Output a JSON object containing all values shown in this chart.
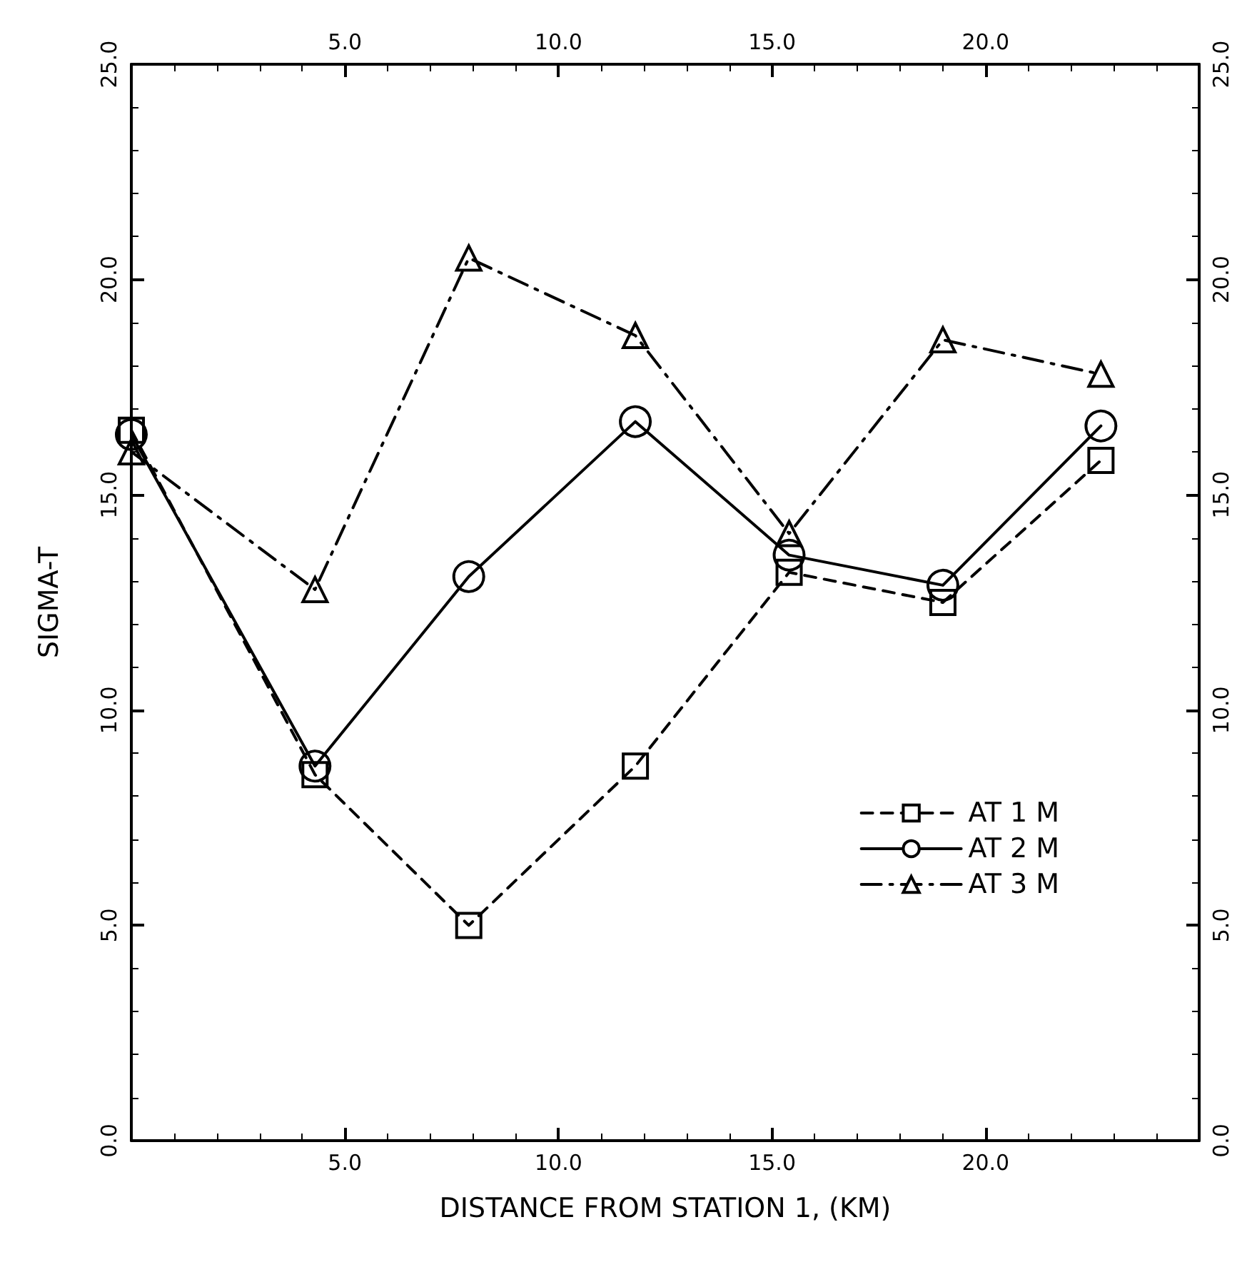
{
  "chart_data": {
    "type": "line",
    "xlabel": "DISTANCE FROM STATION 1, (KM)",
    "ylabel": "SIGMA-T",
    "x": [
      0,
      4.3,
      7.9,
      11.8,
      15.4,
      19.0,
      22.7
    ],
    "series": [
      {
        "name": "AT 1 M",
        "color": "#000000",
        "marker": "square",
        "line_style": "dashed",
        "values": [
          16.5,
          8.5,
          5.0,
          8.7,
          13.2,
          12.5,
          15.8
        ]
      },
      {
        "name": "AT 2 M",
        "color": "#000000",
        "marker": "circle",
        "line_style": "solid",
        "values": [
          16.4,
          8.7,
          13.1,
          16.7,
          13.6,
          12.9,
          16.6
        ]
      },
      {
        "name": "AT 3 M",
        "color": "#000000",
        "marker": "triangle",
        "line_style": "dashdot",
        "values": [
          16.0,
          12.8,
          20.5,
          18.7,
          14.1,
          18.6,
          17.8
        ]
      }
    ],
    "xlim": [
      0,
      25
    ],
    "xticks": [
      {
        "value": 0,
        "label": null
      },
      {
        "value": 5,
        "label": "5.0"
      },
      {
        "value": 10,
        "label": "10.0"
      },
      {
        "value": 15,
        "label": "15.0"
      },
      {
        "value": 20,
        "label": "20.0"
      },
      {
        "value": 25,
        "label": null
      }
    ],
    "x2lim": [
      0,
      25
    ],
    "x2ticks": [
      {
        "value": 0,
        "label": null
      },
      {
        "value": 5,
        "label": "5.0"
      },
      {
        "value": 10,
        "label": "10.0"
      },
      {
        "value": 15,
        "label": "15.0"
      },
      {
        "value": 20,
        "label": "20.0"
      },
      {
        "value": 25,
        "label": null
      }
    ],
    "ylim": [
      0,
      25
    ],
    "yticks": [
      {
        "value": 0,
        "label": "0.0"
      },
      {
        "value": 5,
        "label": "5.0"
      },
      {
        "value": 10,
        "label": "10.0"
      },
      {
        "value": 15,
        "label": "15.0"
      },
      {
        "value": 20,
        "label": "20.0"
      },
      {
        "value": 25,
        "label": "25.0"
      }
    ],
    "y2lim": [
      0,
      25
    ],
    "y2ticks": [
      {
        "value": 0,
        "label": "0.0"
      },
      {
        "value": 5,
        "label": "5.0"
      },
      {
        "value": 10,
        "label": "10.0"
      },
      {
        "value": 15,
        "label": "15.0"
      },
      {
        "value": 20,
        "label": "20.0"
      },
      {
        "value": 25,
        "label": "25.0"
      }
    ],
    "grid": false,
    "legend": "bottom right"
  }
}
